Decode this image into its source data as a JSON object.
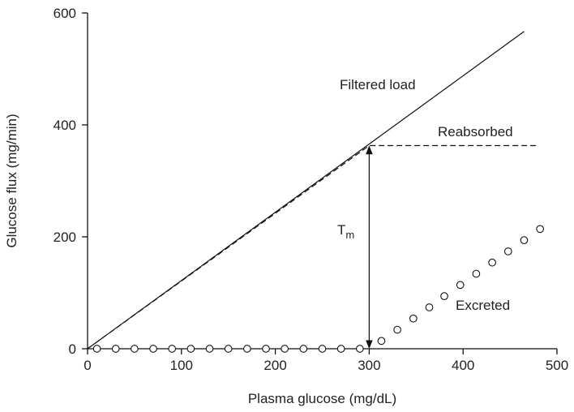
{
  "chart_data": {
    "type": "line",
    "title": "",
    "xlabel": "Plasma glucose (mg/dL)",
    "ylabel": "Glucose flux (mg/min)",
    "xlim": [
      0,
      500
    ],
    "ylim": [
      0,
      600
    ],
    "x_ticks": [
      0,
      100,
      200,
      300,
      400,
      500
    ],
    "y_ticks": [
      0,
      200,
      400,
      600
    ],
    "grid": false,
    "series": [
      {
        "name": "Filtered load",
        "style": "solid-line",
        "x": [
          0,
          465
        ],
        "y": [
          0,
          567
        ]
      },
      {
        "name": "Reabsorbed",
        "style": "dashed-line",
        "x": [
          0,
          300,
          310,
          330,
          360,
          400,
          450,
          480
        ],
        "y": [
          0,
          363,
          363,
          363,
          363,
          363,
          363,
          363
        ]
      },
      {
        "name": "Excreted",
        "style": "open-circles",
        "x": [
          10,
          30,
          50,
          70,
          90,
          110,
          130,
          150,
          170,
          190,
          210,
          230,
          250,
          270,
          290,
          313,
          330,
          347,
          364,
          380,
          397,
          414,
          431,
          448,
          465,
          482
        ],
        "y": [
          0,
          0,
          0,
          0,
          0,
          0,
          0,
          0,
          0,
          0,
          0,
          0,
          0,
          0,
          0,
          14,
          34,
          54,
          74,
          94,
          114,
          134,
          154,
          174,
          194,
          214
        ]
      }
    ],
    "annotations": [
      {
        "label": "T",
        "subscript": "m",
        "x": 300,
        "y_from": 0,
        "y_to": 363
      }
    ]
  },
  "colors": {
    "line": "#111111",
    "text": "#222222",
    "background": "#ffffff"
  }
}
